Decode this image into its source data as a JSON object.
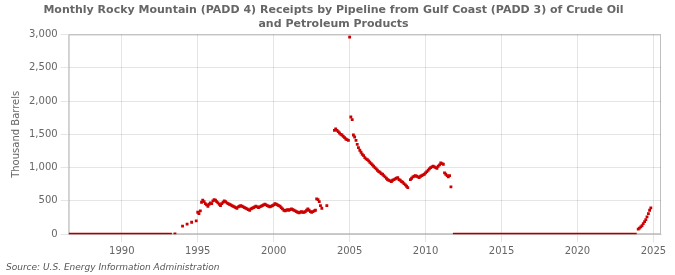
{
  "chart_data": {
    "type": "scatter",
    "title": "Monthly Rocky Mountain (PADD 4) Receipts by Pipeline from Gulf Coast (PADD 3) of Crude Oil\nand Petroleum Products",
    "ylabel": "Thousand Barrels",
    "source": "Source: U.S. Energy Information Administration",
    "xlim": [
      1986.5,
      2025.5
    ],
    "ylim": [
      0,
      3000
    ],
    "xticks": [
      1990,
      1995,
      2000,
      2005,
      2010,
      2015,
      2020,
      2025
    ],
    "yticks": [
      0,
      500,
      {
        "value": 1000,
        "label": "1,000"
      },
      {
        "value": 1500,
        "label": "1,500"
      },
      {
        "value": 2000,
        "label": "2,000"
      },
      {
        "value": 2500,
        "label": "2,500"
      },
      {
        "value": 3000,
        "label": "3,000"
      }
    ],
    "grid": true,
    "series": [
      {
        "type": "scatter",
        "color": "#cc0000",
        "marker": "square",
        "x": [
          1993.5,
          1994.0,
          1994.3,
          1994.6,
          1994.9,
          1995.0,
          1995.08,
          1995.17,
          1995.25,
          1995.33,
          1995.42,
          1995.5,
          1995.58,
          1995.67,
          1995.75,
          1995.83,
          1995.92,
          1996.0,
          1996.08,
          1996.17,
          1996.25,
          1996.33,
          1996.42,
          1996.5,
          1996.58,
          1996.67,
          1996.75,
          1996.83,
          1996.92,
          1997.0,
          1997.08,
          1997.17,
          1997.25,
          1997.33,
          1997.42,
          1997.5,
          1997.58,
          1997.67,
          1997.75,
          1997.83,
          1997.92,
          1998.0,
          1998.08,
          1998.17,
          1998.25,
          1998.33,
          1998.42,
          1998.5,
          1998.58,
          1998.67,
          1998.75,
          1998.83,
          1998.92,
          1999.0,
          1999.08,
          1999.17,
          1999.25,
          1999.33,
          1999.42,
          1999.5,
          1999.58,
          1999.67,
          1999.75,
          1999.83,
          1999.92,
          2000.0,
          2000.08,
          2000.17,
          2000.25,
          2000.33,
          2000.42,
          2000.5,
          2000.58,
          2000.67,
          2000.75,
          2000.83,
          2000.92,
          2001.0,
          2001.08,
          2001.17,
          2001.25,
          2001.33,
          2001.42,
          2001.5,
          2001.58,
          2001.67,
          2001.75,
          2001.83,
          2001.92,
          2002.0,
          2002.08,
          2002.17,
          2002.25,
          2002.33,
          2002.42,
          2002.5,
          2002.58,
          2002.67,
          2002.75,
          2002.83,
          2002.92,
          2003.0,
          2003.08,
          2003.17,
          2003.5,
          2004.0,
          2004.08,
          2004.17,
          2004.25,
          2004.33,
          2004.42,
          2004.5,
          2004.58,
          2004.67,
          2004.75,
          2004.83,
          2004.92,
          2005.0,
          2005.08,
          2005.17,
          2005.25,
          2005.33,
          2005.42,
          2005.5,
          2005.58,
          2005.67,
          2005.75,
          2005.83,
          2005.92,
          2006.0,
          2006.08,
          2006.17,
          2006.25,
          2006.33,
          2006.42,
          2006.5,
          2006.58,
          2006.67,
          2006.75,
          2006.83,
          2006.92,
          2007.0,
          2007.08,
          2007.17,
          2007.25,
          2007.33,
          2007.42,
          2007.5,
          2007.58,
          2007.67,
          2007.75,
          2007.83,
          2007.92,
          2008.0,
          2008.08,
          2008.17,
          2008.25,
          2008.33,
          2008.42,
          2008.5,
          2008.58,
          2008.67,
          2008.75,
          2008.83,
          2009.0,
          2009.08,
          2009.17,
          2009.25,
          2009.33,
          2009.42,
          2009.5,
          2009.58,
          2009.67,
          2009.75,
          2009.83,
          2009.92,
          2010.0,
          2010.08,
          2010.17,
          2010.25,
          2010.33,
          2010.42,
          2010.5,
          2010.58,
          2010.67,
          2010.75,
          2010.83,
          2010.92,
          2011.0,
          2011.08,
          2011.17,
          2011.25,
          2011.33,
          2011.42,
          2011.5,
          2011.58,
          2011.67,
          2024.0,
          2024.08,
          2024.17,
          2024.25,
          2024.33,
          2024.42,
          2024.5,
          2024.58,
          2024.67,
          2024.75,
          2024.83
        ],
        "values": [
          5,
          120,
          150,
          180,
          200,
          330,
          310,
          350,
          480,
          510,
          490,
          460,
          440,
          420,
          450,
          470,
          460,
          500,
          520,
          510,
          490,
          470,
          450,
          430,
          460,
          480,
          500,
          490,
          470,
          460,
          450,
          440,
          430,
          420,
          410,
          400,
          390,
          410,
          420,
          430,
          420,
          410,
          400,
          390,
          380,
          370,
          360,
          380,
          390,
          400,
          410,
          420,
          410,
          400,
          410,
          420,
          430,
          440,
          450,
          440,
          430,
          420,
          410,
          420,
          430,
          440,
          460,
          450,
          440,
          430,
          420,
          400,
          380,
          360,
          350,
          360,
          370,
          360,
          370,
          380,
          370,
          360,
          350,
          340,
          330,
          320,
          330,
          340,
          330,
          330,
          340,
          360,
          380,
          360,
          340,
          330,
          340,
          350,
          360,
          530,
          520,
          490,
          430,
          390,
          430,
          1560,
          1580,
          1560,
          1540,
          1520,
          1500,
          1490,
          1470,
          1450,
          1430,
          1420,
          1410,
          2960,
          1760,
          1720,
          1490,
          1460,
          1410,
          1350,
          1300,
          1260,
          1230,
          1200,
          1180,
          1150,
          1130,
          1120,
          1100,
          1080,
          1060,
          1040,
          1020,
          1000,
          980,
          960,
          940,
          930,
          910,
          900,
          880,
          860,
          840,
          820,
          810,
          800,
          790,
          810,
          820,
          830,
          840,
          850,
          820,
          810,
          790,
          780,
          760,
          740,
          720,
          700,
          820,
          840,
          860,
          870,
          880,
          870,
          860,
          850,
          870,
          880,
          890,
          900,
          920,
          940,
          960,
          980,
          1000,
          1010,
          1020,
          1010,
          1000,
          990,
          1020,
          1040,
          1070,
          1060,
          1050,
          920,
          900,
          880,
          860,
          880,
          710,
          75,
          90,
          110,
          130,
          160,
          190,
          220,
          260,
          310,
          360,
          395
        ]
      },
      {
        "type": "line",
        "color": "#cc0000",
        "x": [
          1986.5,
          1993.3
        ],
        "values": [
          0,
          0
        ]
      },
      {
        "type": "line",
        "color": "#cc0000",
        "x": [
          2011.8,
          2023.9
        ],
        "values": [
          0,
          0
        ]
      }
    ]
  }
}
